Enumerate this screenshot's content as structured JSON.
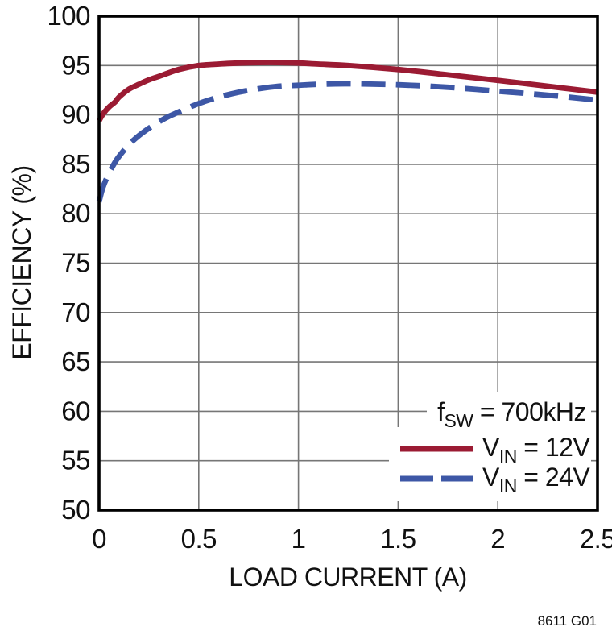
{
  "figure": {
    "caption": "8611 G01",
    "background": "#ffffff"
  },
  "axes": {
    "x_title": "LOAD CURRENT (A)",
    "y_title": "EFFICIENCY (%)"
  },
  "legend": {
    "annotation": {
      "prefix": "f",
      "sub": "SW",
      "rest": " = 700kHz"
    },
    "entries": [
      {
        "prefix": "V",
        "sub": "IN",
        "rest": " = 12V",
        "color": "#9b1b33",
        "style": "solid"
      },
      {
        "prefix": "V",
        "sub": "IN",
        "rest": " = 24V",
        "color": "#3d57a6",
        "style": "dashed"
      }
    ]
  },
  "chart_data": {
    "type": "line",
    "title": "",
    "xlabel": "LOAD CURRENT (A)",
    "ylabel": "EFFICIENCY (%)",
    "xlim": [
      0,
      2.5
    ],
    "ylim": [
      50,
      100
    ],
    "x_ticks": [
      0,
      0.5,
      1,
      1.5,
      2,
      2.5
    ],
    "x_tick_labels": [
      "0",
      "0.5",
      "1",
      "1.5",
      "2",
      "2.5"
    ],
    "y_ticks": [
      50,
      55,
      60,
      65,
      70,
      75,
      80,
      85,
      90,
      95,
      100
    ],
    "y_tick_labels": [
      "50",
      "55",
      "60",
      "65",
      "70",
      "75",
      "80",
      "85",
      "90",
      "95",
      "100"
    ],
    "grid": true,
    "grid_color": "#767676",
    "frame_color": "#000000",
    "legend_position": "lower right",
    "annotation": "fSW = 700kHz",
    "series": [
      {
        "name": "VIN = 12V",
        "color": "#9b1b33",
        "style": "solid",
        "x": [
          0,
          0.02,
          0.05,
          0.08,
          0.1,
          0.15,
          0.2,
          0.25,
          0.3,
          0.4,
          0.5,
          0.6,
          0.7,
          0.8,
          0.9,
          1.0,
          1.1,
          1.25,
          1.5,
          1.75,
          2.0,
          2.25,
          2.5
        ],
        "y": [
          89.4,
          90.1,
          90.8,
          91.3,
          91.8,
          92.6,
          93.1,
          93.55,
          93.9,
          94.6,
          95.0,
          95.15,
          95.25,
          95.3,
          95.3,
          95.25,
          95.15,
          95.0,
          94.6,
          94.05,
          93.5,
          92.9,
          92.3
        ]
      },
      {
        "name": "VIN = 24V",
        "color": "#3d57a6",
        "style": "dashed",
        "x": [
          0,
          0.02,
          0.05,
          0.08,
          0.1,
          0.15,
          0.2,
          0.25,
          0.3,
          0.35,
          0.4,
          0.5,
          0.6,
          0.7,
          0.8,
          0.9,
          1.0,
          1.1,
          1.25,
          1.5,
          1.75,
          2.0,
          2.25,
          2.5
        ],
        "y": [
          81.2,
          82.7,
          84.1,
          85.2,
          85.8,
          87.0,
          87.9,
          88.65,
          89.3,
          89.85,
          90.3,
          91.15,
          91.8,
          92.3,
          92.65,
          92.9,
          93.0,
          93.1,
          93.15,
          93.05,
          92.8,
          92.4,
          92.0,
          91.5
        ]
      }
    ]
  }
}
